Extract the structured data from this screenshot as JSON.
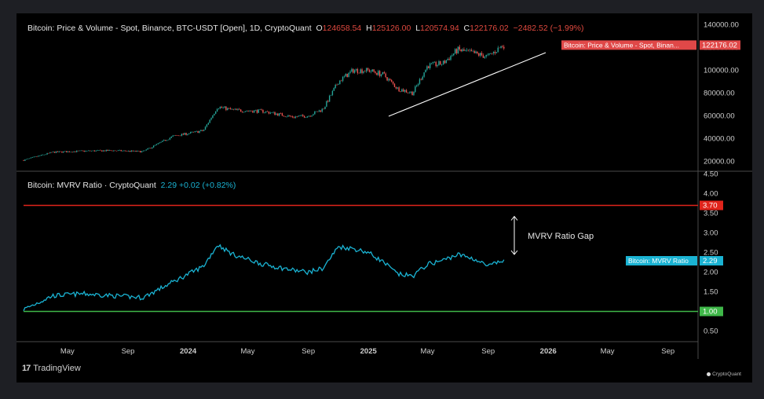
{
  "price_panel": {
    "legend_title": "Bitcoin: Price & Volume - Spot, Binance, BTC-USDT [Open], 1D, CryptoQuant",
    "ohlc": {
      "o_label": "O",
      "o": "124658.54",
      "h_label": "H",
      "h": "125126.00",
      "l_label": "L",
      "l": "120574.94",
      "c_label": "C",
      "c": "122176.02",
      "change": "−2482.52 (−1.99%)"
    },
    "price_tag_label": "Bitcoin: Price & Volume - Spot, Binan...",
    "price_tag_value": "122176.02",
    "up_color": "#26a69a",
    "down_color": "#ef5350"
  },
  "mvrv_panel": {
    "legend_title": "Bitcoin: MVRV Ratio · CryptoQuant",
    "legend_value": "2.29 +0.02 (+0.82%)",
    "tag_label": "Bitcoin: MVRV Ratio",
    "tag_value": "2.29",
    "upper_line_value": "3.70",
    "lower_line_value": "1.00",
    "annotation": "MVRV Ratio Gap",
    "line_color": "#1ab3d3",
    "upper_color": "#e0241b",
    "lower_color": "#3fb849"
  },
  "branding": {
    "tradingview": "TradingView",
    "cryptoquant": "CryptoQuant"
  },
  "chart_data": [
    {
      "type": "candlestick",
      "series": [
        {
          "name": "Bitcoin: Price & Volume - Spot, Binance, BTC-USDT"
        }
      ],
      "x": [
        "2023-02",
        "2023-04",
        "2023-06",
        "2023-08",
        "2023-10",
        "2023-12",
        "2024-02",
        "2024-03",
        "2024-04",
        "2024-06",
        "2024-08",
        "2024-09",
        "2024-10",
        "2024-11",
        "2024-12",
        "2025-01",
        "2025-02",
        "2025-03",
        "2025-04",
        "2025-05",
        "2025-06",
        "2025-07",
        "2025-08",
        "2025-09",
        "2025-10"
      ],
      "values": [
        21000,
        28000,
        29000,
        29500,
        28500,
        42000,
        47000,
        68000,
        65000,
        64000,
        59000,
        60000,
        66000,
        90000,
        100000,
        100000,
        96000,
        84000,
        80000,
        104000,
        106000,
        118000,
        115000,
        112000,
        122176
      ],
      "ylim": [
        12000,
        148000
      ],
      "yticks": [
        "140000.00",
        "120000.00",
        "100000.00",
        "80000.00",
        "60000.00",
        "40000.00",
        "20000.00"
      ]
    },
    {
      "type": "line",
      "series": [
        {
          "name": "Bitcoin: MVRV Ratio"
        }
      ],
      "x": [
        "2023-02",
        "2023-04",
        "2023-06",
        "2023-08",
        "2023-10",
        "2023-12",
        "2024-02",
        "2024-03",
        "2024-04",
        "2024-06",
        "2024-08",
        "2024-09",
        "2024-10",
        "2024-11",
        "2024-12",
        "2025-01",
        "2025-02",
        "2025-03",
        "2025-04",
        "2025-05",
        "2025-06",
        "2025-07",
        "2025-08",
        "2025-09",
        "2025-10"
      ],
      "values": [
        1.05,
        1.4,
        1.45,
        1.4,
        1.35,
        1.75,
        2.15,
        2.7,
        2.45,
        2.2,
        2.05,
        2.0,
        2.1,
        2.65,
        2.6,
        2.5,
        2.25,
        1.95,
        1.9,
        2.2,
        2.3,
        2.45,
        2.35,
        2.15,
        2.29
      ],
      "ylim": [
        0.25,
        4.55
      ],
      "yticks": [
        "4.50",
        "4.00",
        "3.50",
        "3.00",
        "2.50",
        "2.00",
        "1.50",
        "1.00",
        "0.50"
      ],
      "reference_lines": [
        3.7,
        1.0
      ]
    }
  ],
  "x_axis_ticks": [
    "May",
    "Sep",
    "2024",
    "May",
    "Sep",
    "2025",
    "May",
    "Sep",
    "2026",
    "May",
    "Sep"
  ]
}
